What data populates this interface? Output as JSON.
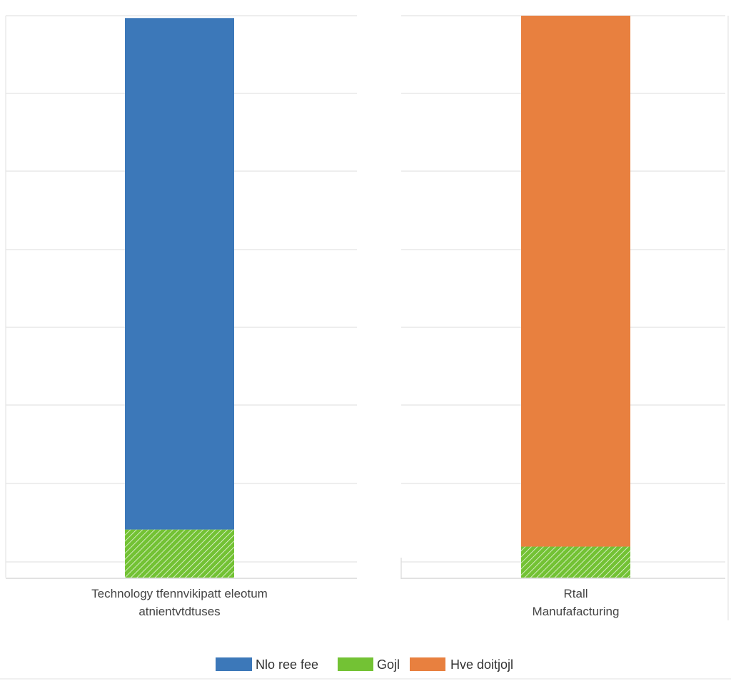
{
  "chart_data": {
    "type": "bar",
    "stacked": true,
    "grid": true,
    "legend_position": "bottom",
    "ylim": [
      0,
      7.25
    ],
    "categories": [
      {
        "lines": [
          "Technology tfennvikipatt eleotum",
          "atnientvtdtuses"
        ]
      },
      {
        "lines": [
          "Rtall",
          "Manufafacturing"
        ]
      }
    ],
    "series": [
      {
        "name": "Nlo ree fee",
        "color": "#3c78b9",
        "pattern": "solid",
        "values": [
          6.6,
          0
        ]
      },
      {
        "name": "Gojl",
        "color": "#73c234",
        "pattern": "hatched",
        "values": [
          0.62,
          0.4
        ]
      },
      {
        "name": "Hve doitjojl",
        "color": "#e8803f",
        "pattern": "solid",
        "values": [
          0,
          6.85
        ]
      }
    ],
    "stack_order": [
      [
        "Gojl",
        "Nlo ree fee"
      ],
      [
        "Gojl",
        "Hve doitjojl"
      ]
    ]
  }
}
